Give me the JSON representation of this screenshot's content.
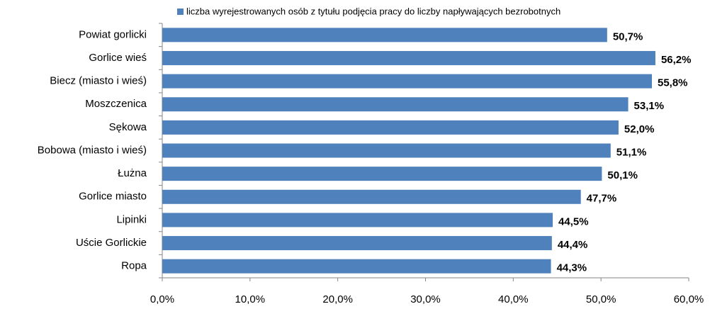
{
  "chart_data": {
    "type": "bar",
    "orientation": "horizontal",
    "legend": "top",
    "series": [
      {
        "name": "liczba wyrejestrowanych osób z tytułu podjęcia pracy do liczby napływających bezrobotnych",
        "color": "#4f81bd",
        "values": [
          50.7,
          56.2,
          55.8,
          53.1,
          52.0,
          51.1,
          50.1,
          47.7,
          44.5,
          44.4,
          44.3
        ],
        "value_labels": [
          "50,7%",
          "56,2%",
          "55,8%",
          "53,1%",
          "52,0%",
          "51,1%",
          "50,1%",
          "47,7%",
          "44,5%",
          "44,4%",
          "44,3%"
        ]
      }
    ],
    "categories": [
      "Powiat gorlicki",
      "Gorlice wieś",
      "Biecz (miasto  i wieś)",
      "Moszczenica",
      "Sękowa",
      "Bobowa (miasto  i wieś)",
      "Łużna",
      "Gorlice miasto",
      "Lipinki",
      "Uście Gorlickie",
      "Ropa"
    ],
    "xlim": [
      0,
      60
    ],
    "xticks": [
      {
        "value": 0,
        "label": "0,0%"
      },
      {
        "value": 10,
        "label": "10,0%"
      },
      {
        "value": 20,
        "label": "20,0%"
      },
      {
        "value": 30,
        "label": "30,0%"
      },
      {
        "value": 40,
        "label": "40,0%"
      },
      {
        "value": 50,
        "label": "50,0%"
      },
      {
        "value": 60,
        "label": "60,0%"
      }
    ]
  }
}
